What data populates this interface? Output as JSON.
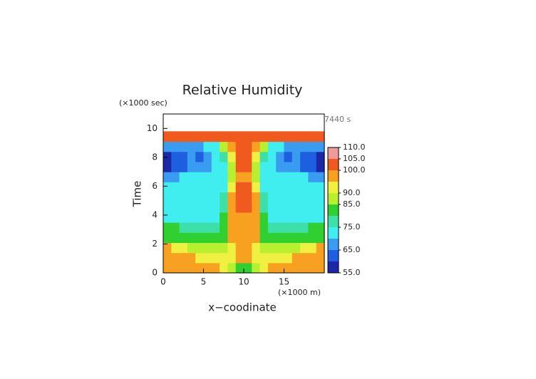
{
  "chart_data": {
    "type": "contour",
    "title": "Relative Humidity",
    "y_unit": "(×1000 sec)",
    "ylabel": "Time",
    "xlabel": "x−coodinate",
    "x_unit": "(×1000 m)",
    "annotation": "7440 s",
    "xlim": [
      0,
      20
    ],
    "ylim": [
      0,
      11
    ],
    "xticks": [
      0,
      5,
      10,
      15
    ],
    "yticks": [
      0,
      2,
      4,
      6,
      8,
      10
    ],
    "x_edges": [
      0,
      1,
      2,
      3,
      4,
      5,
      6,
      7,
      8,
      9,
      10,
      11,
      12,
      13,
      14,
      15,
      16,
      17,
      18,
      19,
      20
    ],
    "y_edges": [
      0,
      0.7,
      1.4,
      2.1,
      2.8,
      3.5,
      4.2,
      4.9,
      5.6,
      6.3,
      7,
      7.7,
      8.4,
      9.1,
      9.8
    ],
    "z": [
      [
        98,
        98,
        99,
        98,
        97,
        97,
        95,
        90,
        86,
        84,
        84,
        86,
        90,
        95,
        97,
        97,
        98,
        99,
        98,
        98
      ],
      [
        98,
        97,
        96,
        95,
        94,
        93,
        90,
        90,
        92,
        95,
        95,
        92,
        90,
        90,
        93,
        94,
        95,
        96,
        97,
        98
      ],
      [
        95,
        93,
        90,
        87,
        88,
        86,
        85,
        88,
        94,
        96,
        96,
        94,
        88,
        85,
        86,
        88,
        87,
        90,
        93,
        95
      ],
      [
        83,
        84,
        84,
        83,
        82,
        80,
        80,
        83,
        95,
        97,
        97,
        95,
        83,
        80,
        80,
        82,
        83,
        84,
        84,
        83
      ],
      [
        80,
        80,
        79,
        79,
        78,
        77,
        78,
        82,
        96,
        98,
        98,
        96,
        82,
        78,
        77,
        78,
        79,
        79,
        80,
        80
      ],
      [
        74,
        73,
        73,
        73,
        73,
        73,
        74,
        80,
        97,
        99,
        99,
        97,
        80,
        74,
        73,
        73,
        73,
        73,
        73,
        74
      ],
      [
        70,
        72,
        72,
        72,
        72,
        72,
        73,
        78,
        96,
        101,
        101,
        96,
        78,
        73,
        72,
        72,
        72,
        72,
        72,
        70
      ],
      [
        72,
        72,
        72,
        73,
        74,
        74,
        73,
        76,
        96,
        102,
        102,
        96,
        76,
        73,
        74,
        74,
        73,
        72,
        72,
        72
      ],
      [
        72,
        70,
        73,
        74,
        74,
        73,
        73,
        74,
        90,
        101,
        101,
        90,
        74,
        73,
        73,
        74,
        74,
        73,
        70,
        72
      ],
      [
        68,
        67,
        70,
        72,
        72,
        73,
        70,
        72,
        85,
        99,
        99,
        85,
        72,
        70,
        73,
        72,
        72,
        70,
        67,
        68
      ],
      [
        57,
        60,
        63,
        65,
        66,
        68,
        72,
        74,
        88,
        100,
        100,
        88,
        74,
        72,
        68,
        66,
        65,
        63,
        60,
        57
      ],
      [
        58,
        62,
        64,
        66,
        64,
        66,
        70,
        75,
        90,
        101,
        101,
        90,
        75,
        70,
        66,
        64,
        66,
        64,
        62,
        58
      ],
      [
        68,
        66,
        66,
        67,
        68,
        70,
        73,
        85,
        98,
        101,
        101,
        98,
        85,
        73,
        70,
        68,
        67,
        66,
        66,
        68
      ],
      [
        101,
        101,
        101,
        101,
        101,
        101,
        101,
        101,
        101,
        101,
        101,
        101,
        101,
        101,
        101,
        101,
        101,
        101,
        101,
        101
      ]
    ],
    "colorbar": {
      "levels": [
        55,
        60,
        65,
        70,
        75,
        80,
        85,
        90,
        95,
        100,
        105,
        110
      ],
      "colors": [
        "#1c28a8",
        "#1e5ee0",
        "#3a9cf0",
        "#40eef0",
        "#3ce0a8",
        "#30d030",
        "#b8f030",
        "#f0f040",
        "#f8a020",
        "#f05a1e",
        "#f09a9a"
      ],
      "ticks": [
        {
          "value": 55,
          "label": "55.0"
        },
        {
          "value": 65,
          "label": "65.0"
        },
        {
          "value": 75,
          "label": "75.0"
        },
        {
          "value": 85,
          "label": "85.0"
        },
        {
          "value": 90,
          "label": "90.0"
        },
        {
          "value": 100,
          "label": "100.0"
        },
        {
          "value": 105,
          "label": "105.0"
        },
        {
          "value": 110,
          "label": "110.0"
        }
      ]
    }
  }
}
